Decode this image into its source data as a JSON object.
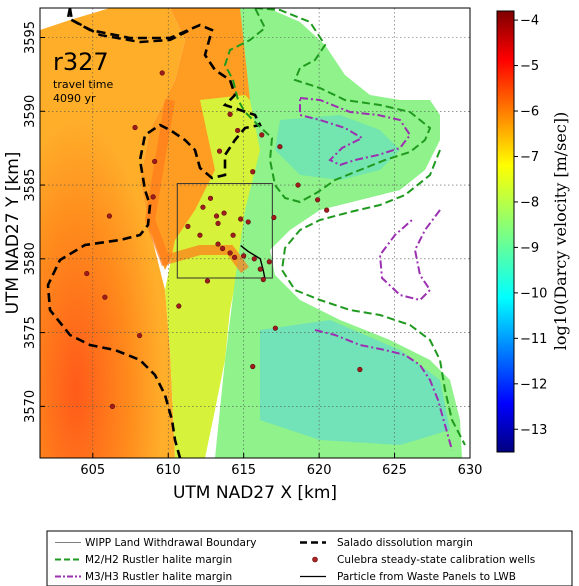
{
  "map": {
    "realization": "r327",
    "travel_time_label": "travel time",
    "travel_time_value": "4090 yr",
    "x_axis_label": "UTM NAD27 X [km]",
    "y_axis_label": "UTM NAD27 Y [km]",
    "x_ticks": [
      {
        "value": 605,
        "label": "605"
      },
      {
        "value": 610,
        "label": "610"
      },
      {
        "value": 615,
        "label": "615"
      },
      {
        "value": 620,
        "label": "620"
      },
      {
        "value": 625,
        "label": "625"
      },
      {
        "value": 630,
        "label": "630"
      }
    ],
    "y_ticks": [
      {
        "value": 3570,
        "label": "3570"
      },
      {
        "value": 3575,
        "label": "3575"
      },
      {
        "value": 3580,
        "label": "3580"
      },
      {
        "value": 3585,
        "label": "3585"
      },
      {
        "value": 3590,
        "label": "3590"
      },
      {
        "value": 3595,
        "label": "3595"
      }
    ],
    "x_range": [
      601.5,
      630
    ],
    "y_range": [
      3566.5,
      3597
    ],
    "grid": true
  },
  "colorbar": {
    "label": "log10(Darcy velocity [m/sec])",
    "range": [
      -13.5,
      -3.8
    ],
    "ticks": [
      {
        "value": -4,
        "label": "−4"
      },
      {
        "value": -5,
        "label": "−5"
      },
      {
        "value": -6,
        "label": "−6"
      },
      {
        "value": -7,
        "label": "−7"
      },
      {
        "value": -8,
        "label": "−8"
      },
      {
        "value": -9,
        "label": "−9"
      },
      {
        "value": -10,
        "label": "−10"
      },
      {
        "value": -11,
        "label": "−11"
      },
      {
        "value": -12,
        "label": "−12"
      },
      {
        "value": -13,
        "label": "−13"
      }
    ],
    "colormap": "jet"
  },
  "legend": {
    "items": [
      {
        "label": "WIPP Land Withdrawal Boundary",
        "style": "thin-solid",
        "color": "#555555"
      },
      {
        "label": "Salado dissolution margin",
        "style": "thick-dash",
        "color": "#000000"
      },
      {
        "label": "M2/H2 Rustler halite margin",
        "style": "dash",
        "color": "#1f9a1f"
      },
      {
        "label": "Culebra steady-state calibration wells",
        "style": "dot",
        "color": "#b22222"
      },
      {
        "label": "M3/H3 Rustler halite margin",
        "style": "dash-dot",
        "color": "#9b30b0"
      },
      {
        "label": "Particle from Waste Panels to LWB",
        "style": "solid",
        "color": "#000000"
      }
    ]
  },
  "features": {
    "wipp_boundary": {
      "x": [
        610.6,
        616.9
      ],
      "y": [
        3578.7,
        3585.1
      ]
    },
    "wells": [
      [
        604.6,
        3579
      ],
      [
        606.1,
        3582.9
      ],
      [
        607.8,
        3588.9
      ],
      [
        608.1,
        3574.8
      ],
      [
        609.1,
        3586.6
      ],
      [
        610.7,
        3576.8
      ],
      [
        611.3,
        3582.2
      ],
      [
        612.1,
        3581.6
      ],
      [
        612.6,
        3578.5
      ],
      [
        612.3,
        3583.5
      ],
      [
        612.8,
        3584.1
      ],
      [
        613.3,
        3582.4
      ],
      [
        613.3,
        3581.0
      ],
      [
        613.6,
        3580.7
      ],
      [
        613.7,
        3583.1
      ],
      [
        614.1,
        3580.4
      ],
      [
        614.3,
        3581.6
      ],
      [
        614.4,
        3580.1
      ],
      [
        614.8,
        3582.7
      ],
      [
        615.0,
        3580.2
      ],
      [
        615.3,
        3582.5
      ],
      [
        615.7,
        3580.0
      ],
      [
        616.1,
        3579.3
      ],
      [
        616.3,
        3578.6
      ],
      [
        616.7,
        3579.8
      ],
      [
        617.1,
        3575.3
      ],
      [
        617.0,
        3582.8
      ],
      [
        615.6,
        3585.9
      ],
      [
        615.6,
        3572.7
      ],
      [
        613.4,
        3587.3
      ],
      [
        614.6,
        3588.7
      ],
      [
        616.2,
        3588.4
      ],
      [
        617.4,
        3587.6
      ],
      [
        618.6,
        3585.0
      ],
      [
        619.9,
        3584.0
      ],
      [
        620.5,
        3583.3
      ],
      [
        622.7,
        3572.5
      ],
      [
        609.6,
        3592.6
      ],
      [
        605.8,
        3577.4
      ],
      [
        613.2,
        3582.9
      ],
      [
        609.0,
        3584.2
      ],
      [
        614.1,
        3589.8
      ],
      [
        606.3,
        3570.0
      ]
    ],
    "particle_path": [
      [
        614.8,
        3580.9
      ],
      [
        615.3,
        3580.5
      ],
      [
        616.1,
        3580.0
      ],
      [
        616.3,
        3579.2
      ],
      [
        616.4,
        3578.7
      ]
    ]
  }
}
